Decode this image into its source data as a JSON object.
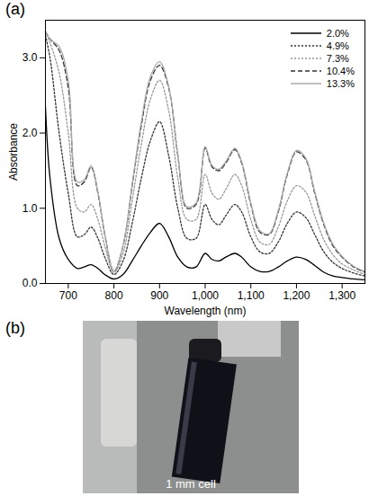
{
  "chart_data": {
    "type": "line",
    "title": "(a)",
    "x_label": "Wavelength (nm)",
    "y_label": "Absorbance",
    "x": [
      650,
      660,
      680,
      700,
      720,
      735,
      750,
      765,
      780,
      800,
      820,
      840,
      860,
      880,
      900,
      920,
      940,
      960,
      980,
      1000,
      1015,
      1030,
      1045,
      1065,
      1080,
      1100,
      1120,
      1140,
      1160,
      1180,
      1200,
      1220,
      1240,
      1260,
      1280,
      1300,
      1325,
      1350
    ],
    "series": [
      {
        "name": "2.0%",
        "color": "#000000",
        "line_style": "solid",
        "values": [
          2.35,
          1.4,
          0.6,
          0.32,
          0.2,
          0.22,
          0.25,
          0.2,
          0.12,
          0.06,
          0.12,
          0.3,
          0.5,
          0.68,
          0.8,
          0.62,
          0.35,
          0.22,
          0.22,
          0.4,
          0.32,
          0.3,
          0.35,
          0.4,
          0.35,
          0.22,
          0.16,
          0.16,
          0.22,
          0.3,
          0.35,
          0.32,
          0.24,
          0.15,
          0.1,
          0.08,
          0.06,
          0.05
        ]
      },
      {
        "name": "4.9%",
        "color": "#333333",
        "line_style": "dotted",
        "values": [
          3.3,
          3.0,
          2.0,
          1.2,
          0.62,
          0.65,
          0.75,
          0.6,
          0.35,
          0.12,
          0.3,
          0.8,
          1.4,
          1.9,
          2.15,
          1.7,
          1.0,
          0.6,
          0.6,
          1.05,
          0.85,
          0.78,
          0.9,
          1.05,
          0.95,
          0.62,
          0.42,
          0.4,
          0.55,
          0.8,
          0.95,
          0.88,
          0.65,
          0.42,
          0.28,
          0.2,
          0.14,
          0.1
        ]
      },
      {
        "name": "7.3%",
        "color": "#999999",
        "line_style": "dotted",
        "values": [
          3.35,
          3.2,
          2.8,
          2.0,
          1.0,
          0.95,
          1.05,
          0.85,
          0.5,
          0.15,
          0.4,
          1.1,
          1.85,
          2.45,
          2.7,
          2.3,
          1.4,
          0.85,
          0.85,
          1.45,
          1.2,
          1.12,
          1.25,
          1.45,
          1.3,
          0.85,
          0.55,
          0.52,
          0.75,
          1.1,
          1.3,
          1.22,
          0.9,
          0.58,
          0.38,
          0.26,
          0.18,
          0.12
        ]
      },
      {
        "name": "10.4%",
        "color": "#333333",
        "line_style": "dashed",
        "values": [
          3.35,
          3.25,
          3.1,
          2.6,
          1.3,
          1.35,
          1.55,
          1.2,
          0.65,
          0.16,
          0.5,
          1.3,
          2.1,
          2.7,
          2.9,
          2.6,
          1.7,
          1.0,
          1.05,
          1.8,
          1.55,
          1.5,
          1.6,
          1.78,
          1.6,
          1.05,
          0.68,
          0.65,
          0.95,
          1.45,
          1.75,
          1.65,
          1.2,
          0.78,
          0.5,
          0.35,
          0.22,
          0.15
        ]
      },
      {
        "name": "13.3%",
        "color": "#aaaaaa",
        "line_style": "solid",
        "values": [
          3.35,
          3.25,
          3.15,
          2.7,
          1.35,
          1.38,
          1.57,
          1.22,
          0.66,
          0.16,
          0.5,
          1.32,
          2.15,
          2.75,
          2.95,
          2.62,
          1.72,
          1.02,
          1.07,
          1.82,
          1.57,
          1.52,
          1.62,
          1.8,
          1.62,
          1.07,
          0.7,
          0.66,
          0.97,
          1.47,
          1.77,
          1.67,
          1.22,
          0.8,
          0.52,
          0.36,
          0.23,
          0.16
        ]
      }
    ],
    "xlim": [
      650,
      1350
    ],
    "xticks": [
      700,
      800,
      900,
      1000,
      1100,
      1200,
      1300
    ],
    "ylim": [
      0,
      3.5
    ],
    "yticks": [
      0,
      1,
      2,
      3
    ],
    "legend": "top-right",
    "grid": false
  },
  "photo": {
    "label": "(b)",
    "caption": "1 mm cell"
  }
}
